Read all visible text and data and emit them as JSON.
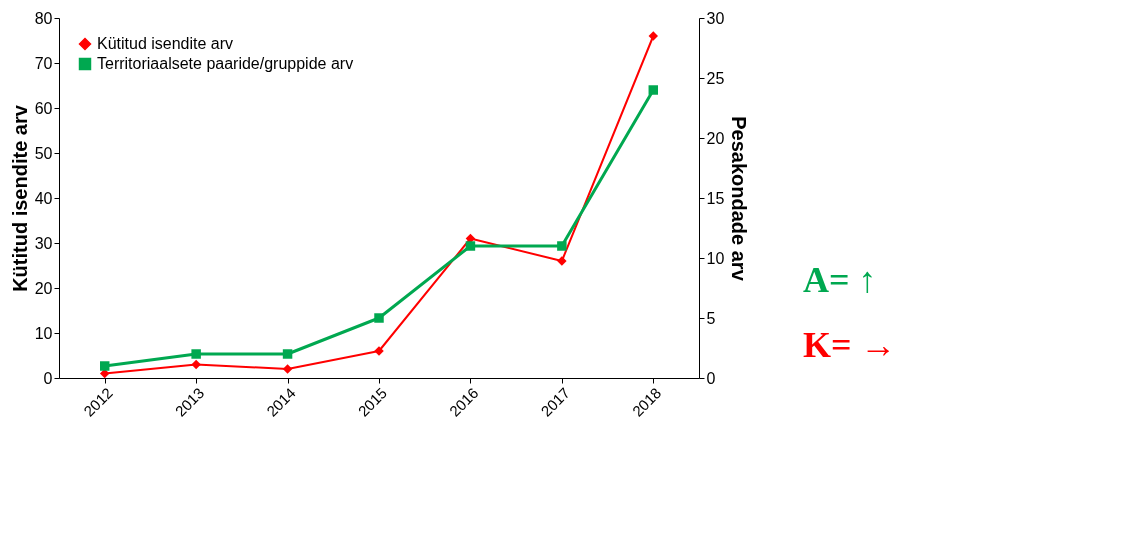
{
  "chart_data": {
    "type": "line",
    "categories": [
      "2012",
      "2013",
      "2014",
      "2015",
      "2016",
      "2017",
      "2018"
    ],
    "ylabel": "Kütitud isendite arv",
    "y2label": "Pesakondade arv",
    "ylim": [
      0,
      80
    ],
    "yticks": [
      0,
      10,
      20,
      30,
      40,
      50,
      60,
      70,
      80
    ],
    "y2lim": [
      0,
      30
    ],
    "y2ticks": [
      0,
      5,
      10,
      15,
      20,
      25,
      30
    ],
    "series": [
      {
        "name": "Kütitud isendite arv",
        "color": "#ff0000",
        "marker": "diamond",
        "values": [
          1,
          3,
          2,
          6,
          31,
          26,
          76
        ]
      },
      {
        "name": "Territoriaalsete paaride/gruppide arv",
        "color": "#00a850",
        "marker": "square",
        "axis": "y2",
        "values": [
          1,
          2,
          2,
          5,
          11,
          11,
          24
        ]
      }
    ],
    "legend": "top left",
    "grid": false,
    "line_style": "solid",
    "annotations": [
      "A= ↑",
      "K= →"
    ]
  }
}
